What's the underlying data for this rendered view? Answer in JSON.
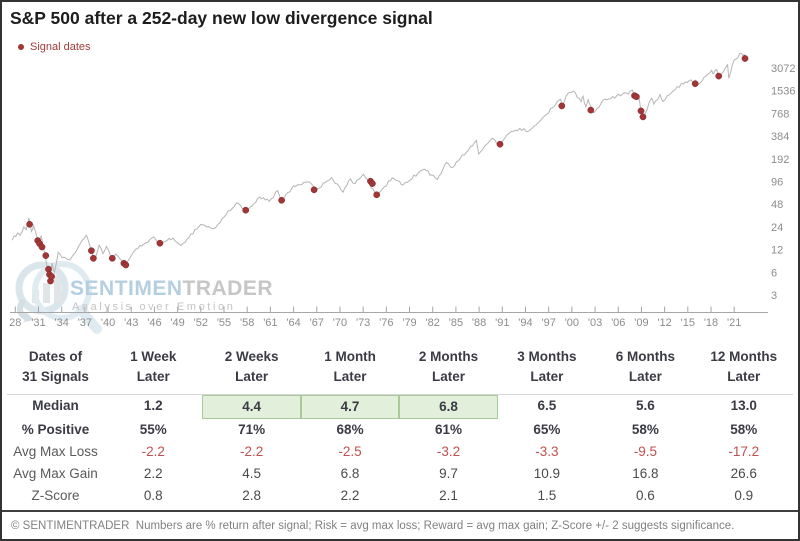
{
  "title": "S&P 500 after a 252-day new low divergence signal",
  "legend": {
    "label": "Signal dates",
    "color": "#a23535"
  },
  "watermark": {
    "brand_highlight": "SENTIMEN",
    "brand_rest": "TRADER",
    "tagline": "Analysis over Emotion"
  },
  "chart_data": {
    "type": "line",
    "title": "S&P 500 price, log scale, with 252-day new low divergence signal dates",
    "legend_entries": [
      "Signal dates"
    ],
    "x_axis": {
      "start_year": 1928,
      "end_year": 2022,
      "tick_step_years": 3
    },
    "x_tick_labels": [
      "28",
      "'31",
      "'34",
      "'37",
      "'40",
      "'43",
      "'46",
      "'49",
      "'52",
      "'55",
      "'58",
      "'61",
      "'64",
      "'67",
      "'70",
      "'73",
      "'76",
      "'79",
      "'82",
      "'85",
      "'88",
      "'91",
      "'94",
      "'97",
      "'00",
      "'03",
      "'06",
      "'09",
      "'12",
      "'15",
      "'18",
      "'21"
    ],
    "y_axis": {
      "scale": "log2",
      "position": "right",
      "ticks": [
        3072,
        1536,
        768,
        384,
        192,
        96,
        48,
        24,
        12,
        6,
        3
      ]
    },
    "grid": false,
    "series": [
      {
        "name": "S&P 500",
        "points": [
          [
            1927.6,
            16
          ],
          [
            1928.3,
            20
          ],
          [
            1928.6,
            18.5
          ],
          [
            1929.1,
            24
          ],
          [
            1929.4,
            22
          ],
          [
            1929.75,
            31.5
          ],
          [
            1930.1,
            21
          ],
          [
            1930.35,
            25
          ],
          [
            1931.0,
            15.5
          ],
          [
            1931.35,
            18
          ],
          [
            1932.5,
            4.4
          ],
          [
            1932.75,
            8
          ],
          [
            1933.05,
            6
          ],
          [
            1933.55,
            11
          ],
          [
            1934.05,
            9.3
          ],
          [
            1935.0,
            8.8
          ],
          [
            1937.2,
            18.6
          ],
          [
            1938.25,
            8.6
          ],
          [
            1938.85,
            13.7
          ],
          [
            1939.35,
            10.6
          ],
          [
            1939.8,
            13.2
          ],
          [
            1940.45,
            9
          ],
          [
            1941.0,
            10.5
          ],
          [
            1942.3,
            7.5
          ],
          [
            1943.6,
            12.2
          ],
          [
            1945.9,
            17.7
          ],
          [
            1946.55,
            14.3
          ],
          [
            1948.4,
            17
          ],
          [
            1949.45,
            13.6
          ],
          [
            1952.0,
            26
          ],
          [
            1953.7,
            22.7
          ],
          [
            1956.6,
            49.7
          ],
          [
            1957.85,
            39
          ],
          [
            1959.6,
            60
          ],
          [
            1960.85,
            52.3
          ],
          [
            1961.95,
            72.6
          ],
          [
            1962.5,
            52.3
          ],
          [
            1964.0,
            84
          ],
          [
            1966.1,
            94
          ],
          [
            1966.8,
            73.2
          ],
          [
            1968.9,
            108
          ],
          [
            1970.4,
            69.3
          ],
          [
            1971.35,
            104
          ],
          [
            1971.95,
            90
          ],
          [
            1973.05,
            120
          ],
          [
            1974.8,
            62.3
          ],
          [
            1976.75,
            107
          ],
          [
            1978.2,
            86.9
          ],
          [
            1980.9,
            140
          ],
          [
            1982.6,
            102
          ],
          [
            1983.8,
            172
          ],
          [
            1984.55,
            147
          ],
          [
            1987.65,
            337
          ],
          [
            1987.95,
            223
          ],
          [
            1989.75,
            360
          ],
          [
            1990.8,
            295
          ],
          [
            1991.9,
            420
          ],
          [
            1993.8,
            482
          ],
          [
            1994.3,
            440
          ],
          [
            1996.2,
            670
          ],
          [
            1998.55,
            1186
          ],
          [
            1998.8,
            957
          ],
          [
            1999.5,
            1420
          ],
          [
            2000.2,
            1527
          ],
          [
            2001.2,
            1100
          ],
          [
            2001.45,
            1300
          ],
          [
            2001.8,
            945
          ],
          [
            2002.1,
            1170
          ],
          [
            2002.8,
            777
          ],
          [
            2004.0,
            1140
          ],
          [
            2007.05,
            1438
          ],
          [
            2007.3,
            1380
          ],
          [
            2007.8,
            1565
          ],
          [
            2008.3,
            1280
          ],
          [
            2008.65,
            1300
          ],
          [
            2008.95,
            750
          ],
          [
            2009.2,
            676
          ],
          [
            2010.3,
            1217
          ],
          [
            2010.6,
            1022
          ],
          [
            2011.4,
            1363
          ],
          [
            2011.8,
            1100
          ],
          [
            2013.1,
            1520
          ],
          [
            2014.7,
            2010
          ],
          [
            2015.45,
            2130
          ],
          [
            2015.75,
            1870
          ],
          [
            2015.95,
            2080
          ],
          [
            2016.15,
            1829
          ],
          [
            2018.1,
            2872
          ],
          [
            2018.35,
            2580
          ],
          [
            2018.75,
            2930
          ],
          [
            2019.0,
            2350
          ],
          [
            2020.15,
            3386
          ],
          [
            2020.3,
            2237
          ],
          [
            2021.0,
            3900
          ],
          [
            2021.95,
            4796
          ],
          [
            2022.2,
            4300
          ],
          [
            2022.35,
            4550
          ],
          [
            2022.5,
            3950
          ]
        ]
      }
    ],
    "signal_dates_points": [
      [
        1929.85,
        26
      ],
      [
        1930.9,
        15.8
      ],
      [
        1931.15,
        14.4
      ],
      [
        1931.45,
        13
      ],
      [
        1931.95,
        10
      ],
      [
        1932.3,
        6.6
      ],
      [
        1932.42,
        5.6
      ],
      [
        1932.55,
        4.6
      ],
      [
        1932.7,
        5.3
      ],
      [
        1937.85,
        11.6
      ],
      [
        1938.1,
        9.2
      ],
      [
        1940.55,
        9.2
      ],
      [
        1942.05,
        7.9
      ],
      [
        1942.3,
        7.5
      ],
      [
        1946.7,
        14.6
      ],
      [
        1957.8,
        40
      ],
      [
        1962.45,
        54
      ],
      [
        1966.65,
        74.5
      ],
      [
        1973.95,
        97
      ],
      [
        1974.2,
        90
      ],
      [
        1974.75,
        64
      ],
      [
        1990.7,
        300
      ],
      [
        1998.7,
        966
      ],
      [
        2002.45,
        850
      ],
      [
        2008.1,
        1320
      ],
      [
        2008.35,
        1280
      ],
      [
        2008.95,
        830
      ],
      [
        2009.2,
        690
      ],
      [
        2015.95,
        1900
      ],
      [
        2019.0,
        2400
      ],
      [
        2022.4,
        4100
      ]
    ],
    "signal_count": 31
  },
  "table": {
    "corner_header": [
      "Dates of",
      "31 Signals"
    ],
    "column_headers": [
      [
        "1 Week",
        "Later"
      ],
      [
        "2 Weeks",
        "Later"
      ],
      [
        "1 Month",
        "Later"
      ],
      [
        "2 Months",
        "Later"
      ],
      [
        "3 Months",
        "Later"
      ],
      [
        "6 Months",
        "Later"
      ],
      [
        "12 Months",
        "Later"
      ]
    ],
    "rows": [
      {
        "label": "Median",
        "values": [
          "1.2",
          "4.4",
          "4.7",
          "6.8",
          "6.5",
          "5.6",
          "13.0"
        ],
        "label_style": "bold",
        "value_style": "bold",
        "highlight_cols": [
          1,
          2,
          3
        ]
      },
      {
        "label": "% Positive",
        "values": [
          "55%",
          "71%",
          "68%",
          "61%",
          "65%",
          "58%",
          "58%"
        ],
        "label_style": "bold",
        "value_style": "bold",
        "highlight_cols": []
      },
      {
        "label": "Avg Max Loss",
        "values": [
          "-2.2",
          "-2.2",
          "-2.5",
          "-3.2",
          "-3.3",
          "-9.5",
          "-17.2"
        ],
        "label_style": "reg",
        "value_style": "red",
        "highlight_cols": []
      },
      {
        "label": "Avg Max Gain",
        "values": [
          "2.2",
          "4.5",
          "6.8",
          "9.7",
          "10.9",
          "16.8",
          "26.6"
        ],
        "label_style": "reg",
        "value_style": "reg",
        "highlight_cols": []
      },
      {
        "label": "Z-Score",
        "values": [
          "0.8",
          "2.8",
          "2.2",
          "2.1",
          "1.5",
          "0.6",
          "0.9"
        ],
        "label_style": "reg",
        "value_style": "reg",
        "highlight_cols": []
      }
    ]
  },
  "footer": "© SENTIMENTRADER  Numbers are % return after signal; Risk = avg max loss; Reward = avg max gain; Z-Score +/- 2 suggests significance.",
  "colors": {
    "line": "#b5b5b5",
    "signal_dot": "#a23535",
    "axis_text": "#8c8c8c",
    "highlight_bg": "#e2efda",
    "highlight_border": "#a9c998",
    "negative_value": "#c0504d",
    "watermark_blue": "#b5cfe0",
    "watermark_gray": "#c6c6c6"
  }
}
